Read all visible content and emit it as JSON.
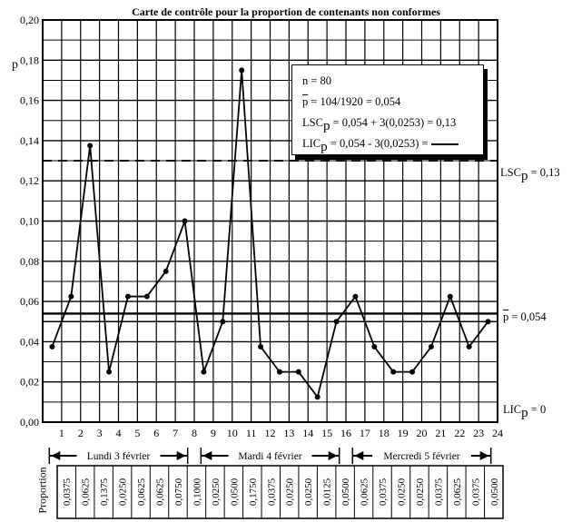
{
  "chart_data": {
    "type": "line",
    "title": "Carte de contrôle pour la proportion de contenants non conformes",
    "ylabel": "p",
    "ylim": [
      0,
      0.2
    ],
    "yticks": [
      "0,00",
      "0,02",
      "0,04",
      "0,06",
      "0,08",
      "0,10",
      "0,12",
      "0,14",
      "0,16",
      "0,18",
      "0,20"
    ],
    "x": [
      "1",
      "2",
      "3",
      "4",
      "5",
      "6",
      "7",
      "8",
      "9",
      "10",
      "11",
      "12",
      "13",
      "14",
      "15",
      "16",
      "17",
      "18",
      "19",
      "20",
      "21",
      "22",
      "23",
      "24"
    ],
    "values": [
      0.0375,
      0.0625,
      0.1375,
      0.025,
      0.0625,
      0.0625,
      0.075,
      0.1,
      0.025,
      0.05,
      0.175,
      0.0375,
      0.025,
      0.025,
      0.0125,
      0.05,
      0.0625,
      0.0375,
      0.025,
      0.025,
      0.0375,
      0.0625,
      0.0375,
      0.05
    ],
    "proportion_labels": [
      "0,0375",
      "0,0625",
      "0,1375",
      "0,0250",
      "0,0625",
      "0,0625",
      "0,0750",
      "0,1000",
      "0,0250",
      "0,0500",
      "0,1750",
      "0,0375",
      "0,0250",
      "0,0250",
      "0,0125",
      "0,0500",
      "0,0625",
      "0,0375",
      "0,0250",
      "0,0250",
      "0,0375",
      "0,0625",
      "0,0375",
      "0,0500"
    ],
    "proportion_row_label": "Proportion",
    "control_lines": {
      "ucl": 0.13,
      "center": 0.054,
      "lcl": 0,
      "ucl_label": "LSC",
      "ucl_value": " = 0,13",
      "center_label": "p",
      "center_value": " = 0,054",
      "lcl_label": "LIC",
      "lcl_value": " = 0"
    },
    "legend": {
      "line1": "n = 80",
      "line2_p": "p",
      "line2_rest": " = 104/1920 = 0,054",
      "line3_a": "LSC",
      "line3_b": " = 0,054 + 3(0,0253) = 0,13",
      "line4_a": "LIC",
      "line4_b": " = 0,054 - 3(0,0253) = ",
      "sub": "p"
    },
    "days": [
      {
        "label": "Lundi 3 février",
        "from": 1,
        "to": 8
      },
      {
        "label": "Mardi 4 février",
        "from": 9,
        "to": 16
      },
      {
        "label": "Mercredi 5 février",
        "from": 17,
        "to": 24
      }
    ],
    "grid": true
  }
}
